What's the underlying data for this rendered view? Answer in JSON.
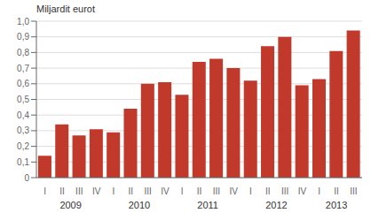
{
  "chart_data": {
    "type": "bar",
    "ylabel": "Miljardit eurot",
    "categories": [
      "I",
      "II",
      "III",
      "IV",
      "I",
      "II",
      "III",
      "IV",
      "I",
      "II",
      "III",
      "IV",
      "I",
      "II",
      "III",
      "IV",
      "I",
      "II",
      "III"
    ],
    "values": [
      0.14,
      0.34,
      0.27,
      0.31,
      0.29,
      0.44,
      0.6,
      0.61,
      0.53,
      0.74,
      0.76,
      0.7,
      0.62,
      0.84,
      0.9,
      0.59,
      0.63,
      0.81,
      0.94
    ],
    "color": "#C0392B",
    "ylim": [
      0,
      1.0
    ],
    "yticks": [
      0,
      {
        "value": 0.1,
        "label": "0,1"
      },
      {
        "value": 0.2,
        "label": "0,2"
      },
      {
        "value": 0.3,
        "label": "0,3"
      },
      {
        "value": 0.4,
        "label": "0,4"
      },
      {
        "value": 0.5,
        "label": "0,5"
      },
      {
        "value": 0.6,
        "label": "0,6"
      },
      {
        "value": 0.7,
        "label": "0,7"
      },
      {
        "value": 0.8,
        "label": "0,8"
      },
      {
        "value": 0.9,
        "label": "0,9"
      },
      {
        "value": 1.0,
        "label": "1,0"
      }
    ],
    "grid": true,
    "annotations": [
      "2009",
      "2010",
      "2011",
      "2012",
      "2013"
    ]
  }
}
